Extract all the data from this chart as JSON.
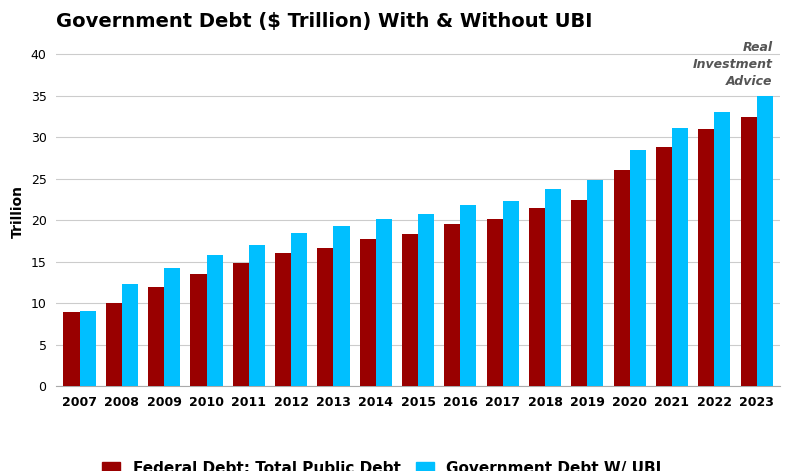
{
  "title": "Government Debt ($ Trillion) With & Without UBI",
  "ylabel": "Trillion",
  "years": [
    2007,
    2008,
    2009,
    2010,
    2011,
    2012,
    2013,
    2014,
    2015,
    2016,
    2017,
    2018,
    2019,
    2020,
    2021,
    2022,
    2023
  ],
  "federal_debt": [
    9.0,
    10.0,
    11.9,
    13.5,
    14.8,
    16.1,
    16.7,
    17.8,
    18.4,
    19.6,
    20.1,
    21.5,
    22.5,
    26.1,
    28.8,
    31.0,
    32.5
  ],
  "ubi_debt": [
    9.1,
    12.3,
    14.2,
    15.8,
    17.0,
    18.5,
    19.3,
    20.2,
    20.8,
    21.8,
    22.3,
    23.8,
    24.8,
    28.5,
    31.1,
    33.0,
    35.0
  ],
  "bar_color_federal": "#990000",
  "bar_color_ubi": "#00BFFF",
  "background_color": "#ffffff",
  "ylim": [
    0,
    42
  ],
  "yticks": [
    0,
    5,
    10,
    15,
    20,
    25,
    30,
    35,
    40
  ],
  "legend_label_federal": "Federal Debt: Total Public Debt",
  "legend_label_ubi": "Government Debt W/ UBI",
  "title_fontsize": 14,
  "ylabel_fontsize": 10,
  "tick_fontsize": 9,
  "legend_fontsize": 11,
  "watermark_text": "Real\nInvestment\nAdvice",
  "watermark_color": "#555555",
  "bar_width": 0.38
}
